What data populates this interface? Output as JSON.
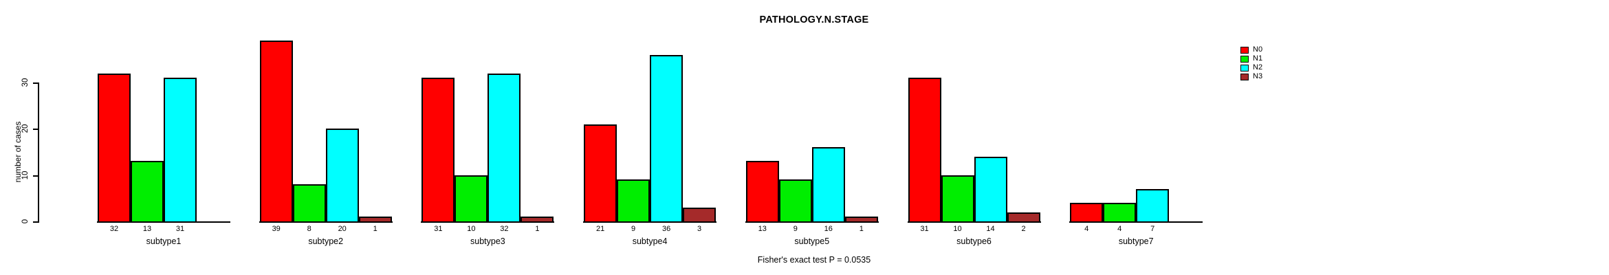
{
  "chart_data": {
    "type": "bar",
    "title": "PATHOLOGY.N.STAGE",
    "ylabel": "number of cases",
    "footer": "Fisher's exact test P = 0.0535",
    "categories": [
      "subtype1",
      "subtype2",
      "subtype3",
      "subtype4",
      "subtype5",
      "subtype6",
      "subtype7"
    ],
    "series": [
      {
        "name": "N0",
        "color": "#FF0000",
        "values": [
          32,
          39,
          31,
          21,
          13,
          31,
          4
        ]
      },
      {
        "name": "N1",
        "color": "#00EE00",
        "values": [
          13,
          8,
          10,
          9,
          9,
          10,
          4
        ]
      },
      {
        "name": "N2",
        "color": "#00FFFF",
        "values": [
          31,
          20,
          32,
          36,
          16,
          14,
          7
        ]
      },
      {
        "name": "N3",
        "color": "#A52A2A",
        "values": [
          0,
          1,
          1,
          3,
          1,
          2,
          0
        ]
      }
    ],
    "yticks": [
      0,
      10,
      20,
      30
    ],
    "ylim": [
      0,
      39
    ],
    "grid": false,
    "legend_position": "right-inside",
    "bar_value_labels": "shown under each bar when value > 0"
  }
}
